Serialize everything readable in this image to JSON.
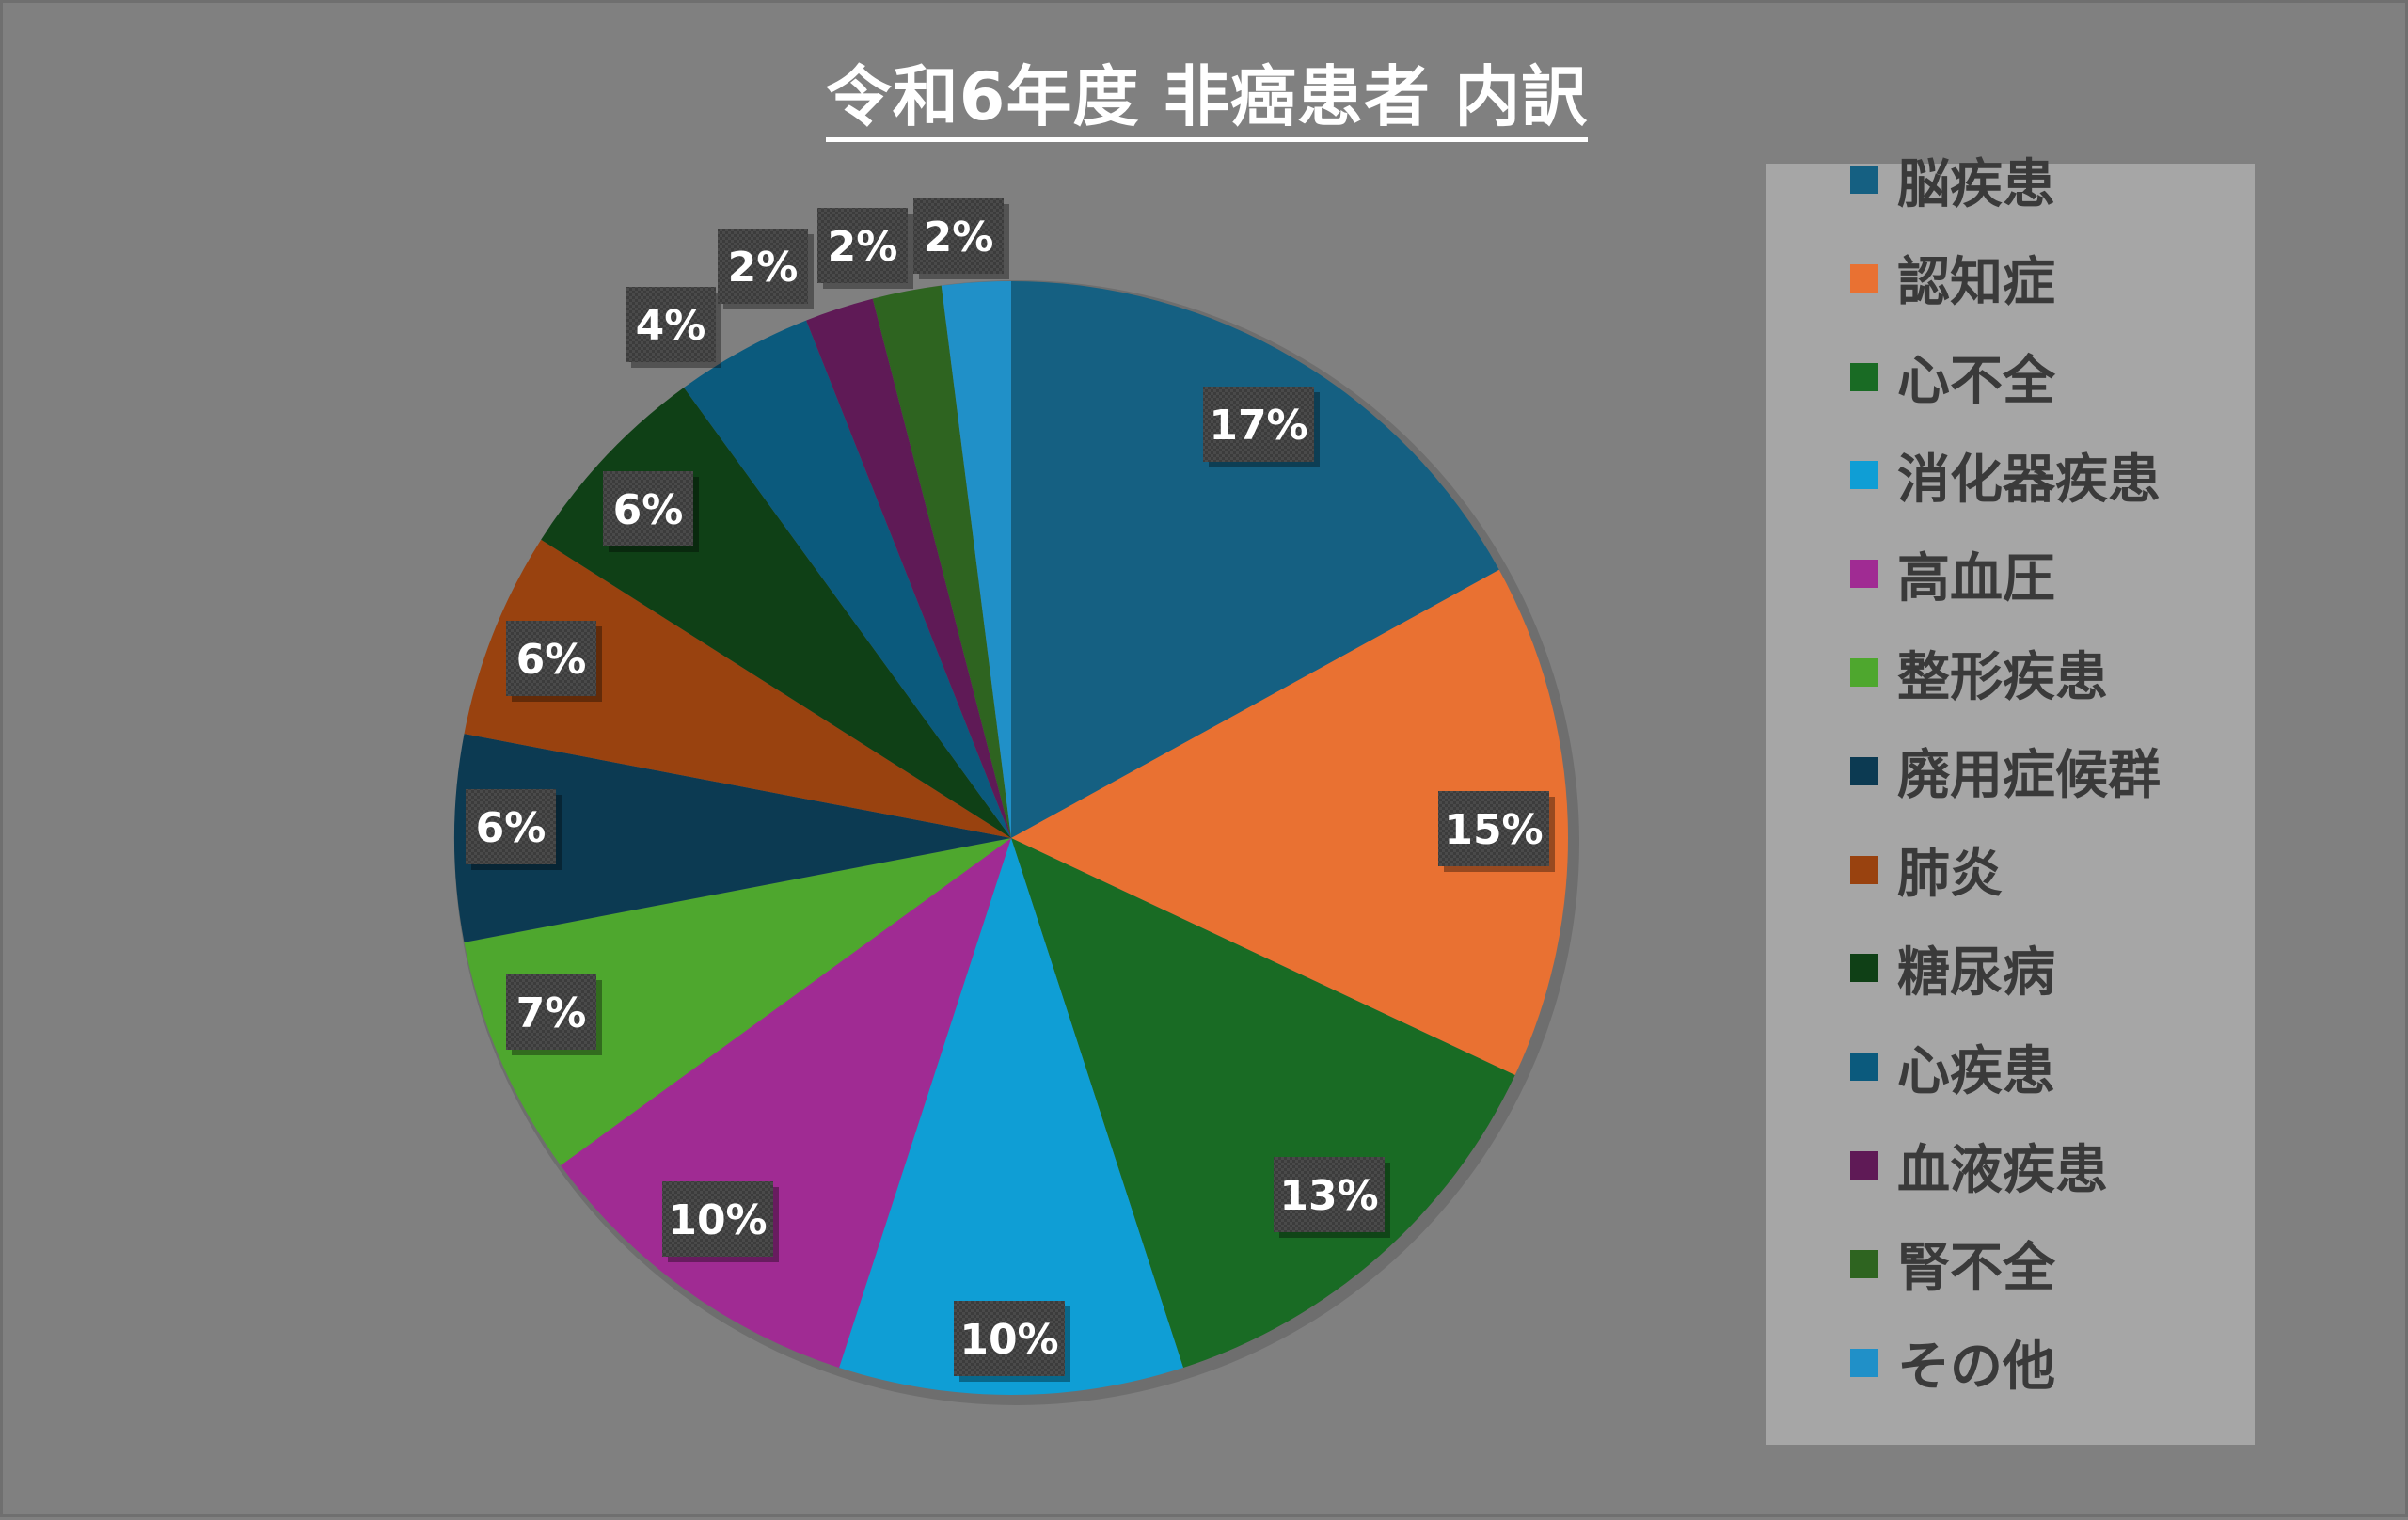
{
  "chart_data": {
    "type": "pie",
    "title": "令和6年度 非癌患者 内訳",
    "categories": [
      "脳疾患",
      "認知症",
      "心不全",
      "消化器疾患",
      "高血圧",
      "整形疾患",
      "廃用症候群",
      "肺炎",
      "糖尿病",
      "心疾患",
      "血液疾患",
      "腎不全",
      "その他"
    ],
    "values": [
      17,
      15,
      13,
      10,
      10,
      7,
      6,
      6,
      6,
      4,
      2,
      2,
      2
    ],
    "data_labels": [
      "17%",
      "15%",
      "13%",
      "10%",
      "10%",
      "7%",
      "6%",
      "6%",
      "6%",
      "4%",
      "2%",
      "2%",
      "2%"
    ],
    "colors": [
      "#156082",
      "#e97132",
      "#196b24",
      "#0f9ed5",
      "#a02b93",
      "#4ea72e",
      "#0c3a52",
      "#99420f",
      "#0f4016",
      "#0b5a7d",
      "#5f1a56",
      "#2e6420",
      "#2090c8"
    ],
    "legend_position": "right"
  }
}
